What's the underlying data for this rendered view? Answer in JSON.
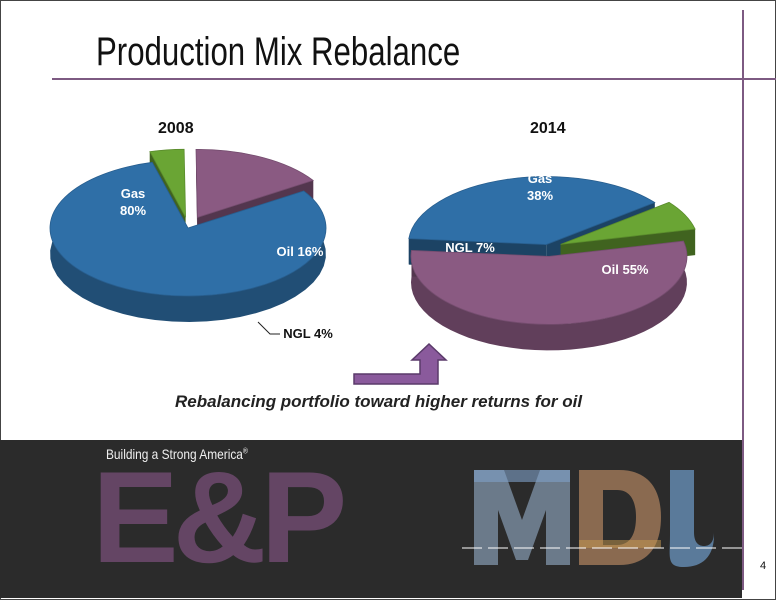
{
  "slide": {
    "title": "Production Mix Rebalance",
    "caption": "Rebalancing portfolio toward higher returns for oil",
    "footer_tagline": "Building a Strong America",
    "footer_tagline_mark": "®",
    "footer_logo_text": "E&P",
    "brand_logo": "MDU",
    "page_number": "4",
    "colors": {
      "gas": "#2f6fa7",
      "oil": "#8a5a82",
      "ngl": "#6aa534",
      "accent_rule": "#7d5a82",
      "footer_bg": "#2b2b2b"
    }
  },
  "chart_data": [
    {
      "type": "pie",
      "title": "2008",
      "slices": [
        {
          "label": "Gas",
          "value": 80,
          "display": "Gas\n80%"
        },
        {
          "label": "NGL",
          "value": 4,
          "display": "NGL 4%"
        },
        {
          "label": "Oil",
          "value": 16,
          "display": "Oil 16%"
        }
      ]
    },
    {
      "type": "pie",
      "title": "2014",
      "slices": [
        {
          "label": "Gas",
          "value": 38,
          "display": "Gas\n38%"
        },
        {
          "label": "NGL",
          "value": 7,
          "display": "NGL 7%"
        },
        {
          "label": "Oil",
          "value": 55,
          "display": "Oil 55%"
        }
      ]
    }
  ]
}
